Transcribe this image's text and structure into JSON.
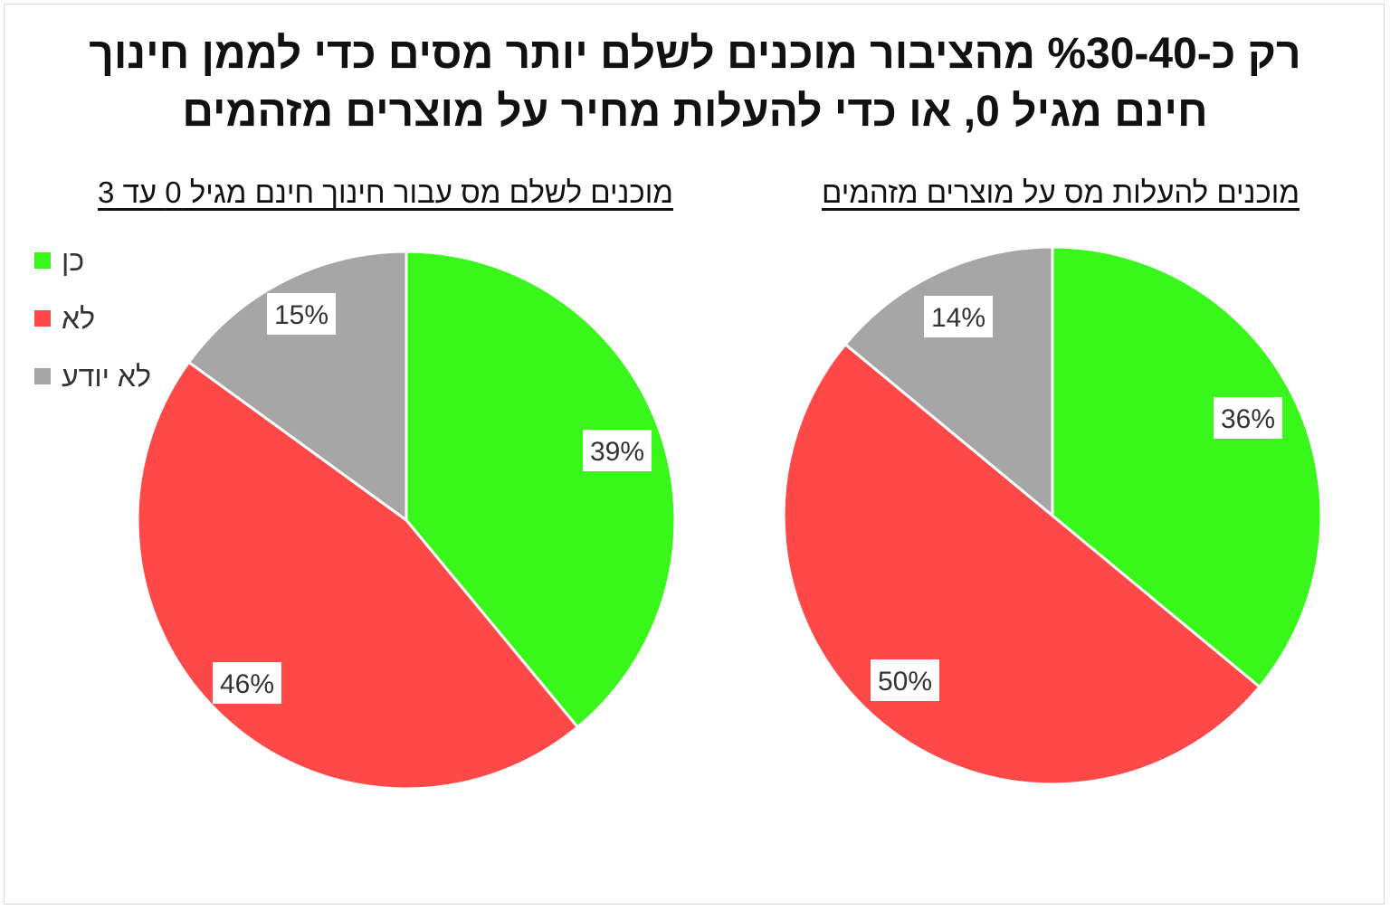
{
  "title": {
    "line1": "רק כ-%30-40 מהציבור מוכנים לשלם יותר מסים כדי לממן חינוך",
    "line2": "חינם מגיל 0, או כדי להעלות מחיר על מוצרים מזהמים"
  },
  "legend": {
    "items": [
      {
        "label": "כן",
        "color": "#39f71a"
      },
      {
        "label": "לא",
        "color": "#ff4848"
      },
      {
        "label": "לא יודע",
        "color": "#a6a6a6"
      }
    ]
  },
  "chart_data": [
    {
      "type": "pie",
      "title": "מוכנים לשלם מס עבור חינוך חינם מגיל 0 עד 3",
      "categories": [
        "כן",
        "לא",
        "לא יודע"
      ],
      "values": [
        39,
        46,
        15
      ],
      "labels": [
        "39%",
        "46%",
        "15%"
      ],
      "colors": [
        "#39f71a",
        "#ff4848",
        "#a6a6a6"
      ],
      "legend_position": "left"
    },
    {
      "type": "pie",
      "title": "מוכנים להעלות מס על מוצרים מזהמים",
      "categories": [
        "כן",
        "לא",
        "לא יודע"
      ],
      "values": [
        36,
        50,
        14
      ],
      "labels": [
        "36%",
        "50%",
        "14%"
      ],
      "colors": [
        "#39f71a",
        "#ff4848",
        "#a6a6a6"
      ]
    }
  ]
}
